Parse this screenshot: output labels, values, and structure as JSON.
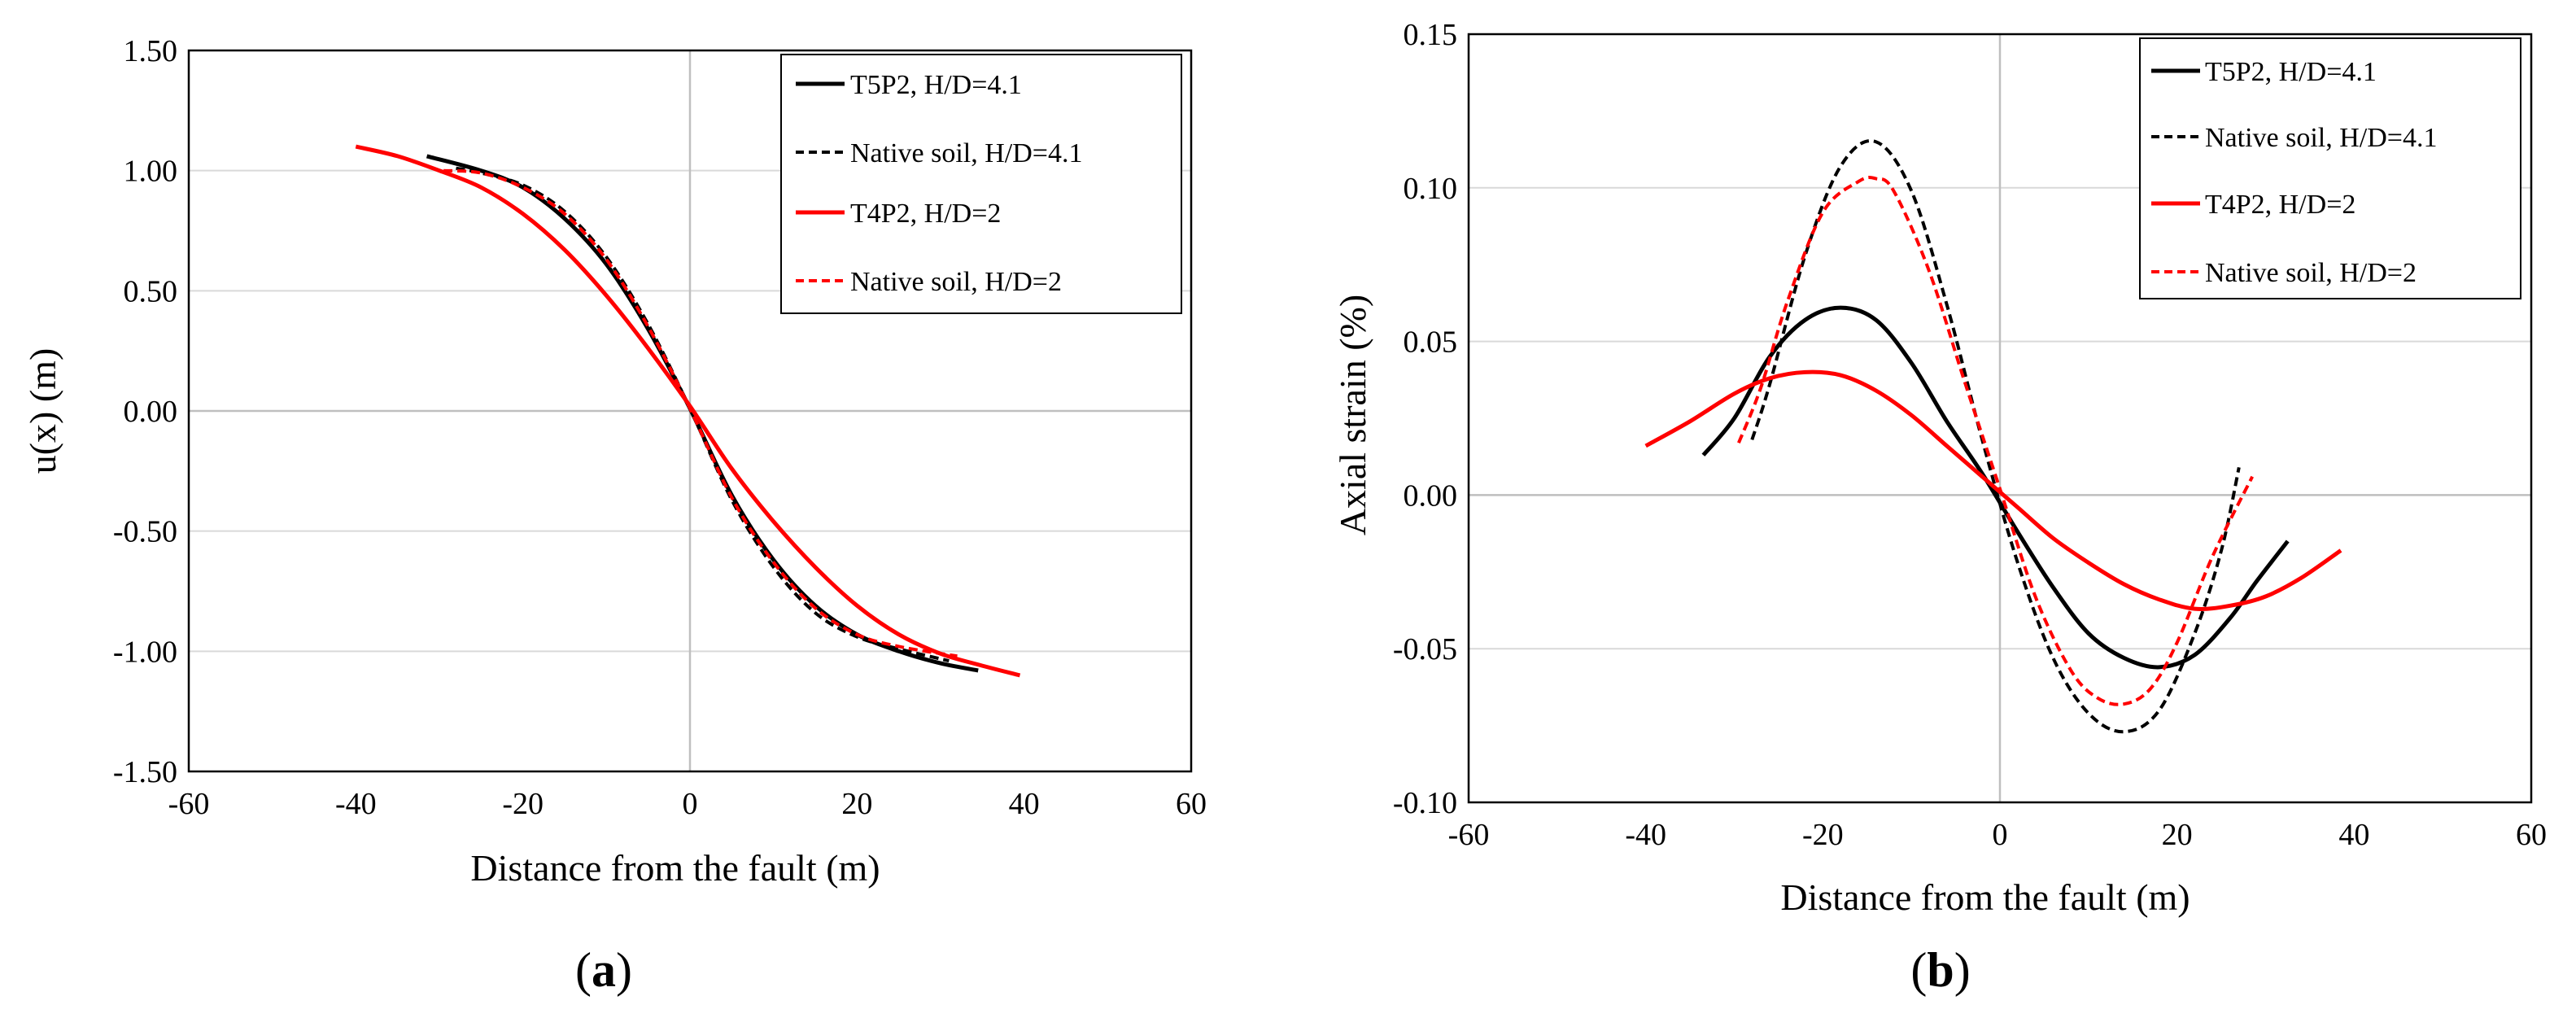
{
  "chart_data": [
    {
      "type": "line",
      "panel_label": "(a)",
      "panel_letter": "a",
      "xlabel": "Distance from the fault (m)",
      "ylabel": "u(x) (m)",
      "xlim": [
        -60,
        60
      ],
      "ylim": [
        -1.5,
        1.5
      ],
      "x_ticks": [
        -60,
        -40,
        -20,
        0,
        20,
        40,
        60
      ],
      "y_ticks": [
        1.5,
        1.0,
        0.5,
        0.0,
        -0.5,
        -1.0,
        -1.5
      ],
      "x_tick_labels": [
        "-60",
        "-40",
        "-20",
        "0",
        "20",
        "40",
        "60"
      ],
      "y_tick_labels": [
        "1.50",
        "1.00",
        "0.50",
        "0.00",
        "-0.50",
        "-1.00",
        "-1.50"
      ],
      "grid": "horizontal",
      "legend_position": "top-right",
      "series": [
        {
          "name": "T5P2, H/D=4.1",
          "color": "#000000",
          "style": "solid",
          "x": [
            -31.5,
            -25,
            -20,
            -15,
            -10,
            -5,
            0,
            5,
            10,
            15,
            20,
            25,
            30,
            34.5
          ],
          "y": [
            1.06,
            1.0,
            0.93,
            0.8,
            0.61,
            0.34,
            0.01,
            -0.35,
            -0.62,
            -0.81,
            -0.93,
            -1.0,
            -1.05,
            -1.08
          ]
        },
        {
          "name": "Native soil, H/D=4.1",
          "color": "#000000",
          "style": "dashed",
          "x": [
            -28,
            -25,
            -20,
            -15,
            -10,
            -5,
            0,
            5,
            10,
            15,
            20,
            25,
            31
          ],
          "y": [
            1.01,
            0.99,
            0.94,
            0.83,
            0.64,
            0.36,
            0.01,
            -0.37,
            -0.65,
            -0.84,
            -0.94,
            -0.99,
            -1.04
          ]
        },
        {
          "name": "T4P2, H/D=2",
          "color": "#ff0000",
          "style": "solid",
          "x": [
            -40,
            -35,
            -30,
            -25,
            -20,
            -15,
            -10,
            -5,
            0,
            5,
            10,
            15,
            20,
            25,
            30,
            35,
            39.5
          ],
          "y": [
            1.1,
            1.06,
            1.0,
            0.93,
            0.82,
            0.67,
            0.48,
            0.26,
            0.02,
            -0.24,
            -0.46,
            -0.65,
            -0.81,
            -0.93,
            -1.01,
            -1.06,
            -1.1
          ]
        },
        {
          "name": "Native soil, H/D=2",
          "color": "#ff0000",
          "style": "dashed",
          "x": [
            -29.5,
            -25,
            -20,
            -15,
            -10,
            -5,
            0,
            5,
            10,
            15,
            20,
            25,
            32
          ],
          "y": [
            1.0,
            0.99,
            0.93,
            0.82,
            0.63,
            0.35,
            0.01,
            -0.36,
            -0.63,
            -0.82,
            -0.93,
            -0.98,
            -1.02
          ]
        }
      ]
    },
    {
      "type": "line",
      "panel_label": "(b)",
      "panel_letter": "b",
      "xlabel": "Distance from the fault (m)",
      "ylabel": "Axial strain (%)",
      "xlim": [
        -60,
        60
      ],
      "ylim": [
        -0.1,
        0.15
      ],
      "x_ticks": [
        -60,
        -40,
        -20,
        0,
        20,
        40,
        60
      ],
      "y_ticks": [
        0.15,
        0.1,
        0.05,
        0.0,
        -0.05,
        -0.1
      ],
      "x_tick_labels": [
        "-60",
        "-40",
        "-20",
        "0",
        "20",
        "40",
        "60"
      ],
      "y_tick_labels": [
        "0.15",
        "0.10",
        "0.05",
        "0.00",
        "-0.05",
        "-0.10"
      ],
      "grid": "horizontal",
      "legend_position": "top-right",
      "series": [
        {
          "name": "T5P2, H/D=4.1",
          "color": "#000000",
          "style": "solid",
          "x": [
            -33.5,
            -30,
            -26,
            -22,
            -18,
            -14,
            -10,
            -6,
            -2,
            2,
            6,
            10,
            14,
            18,
            22,
            26,
            29,
            32.5
          ],
          "y": [
            0.013,
            0.025,
            0.045,
            0.057,
            0.061,
            0.057,
            0.043,
            0.024,
            0.007,
            -0.012,
            -0.03,
            -0.045,
            -0.053,
            -0.056,
            -0.052,
            -0.04,
            -0.028,
            -0.015
          ]
        },
        {
          "name": "Native soil, H/D=4.1",
          "color": "#000000",
          "style": "dashed",
          "x": [
            -28,
            -26,
            -22,
            -18,
            -14,
            -10,
            -6,
            -2,
            2,
            6,
            10,
            14,
            18,
            22,
            25,
            27
          ],
          "y": [
            0.018,
            0.036,
            0.078,
            0.107,
            0.115,
            0.099,
            0.062,
            0.018,
            -0.022,
            -0.053,
            -0.071,
            -0.077,
            -0.07,
            -0.045,
            -0.018,
            0.009
          ]
        },
        {
          "name": "T4P2, H/D=2",
          "color": "#ff0000",
          "style": "solid",
          "x": [
            -40,
            -35,
            -30,
            -26,
            -22,
            -18,
            -14,
            -10,
            -6,
            -2,
            2,
            6,
            10,
            14,
            18,
            22,
            26,
            30,
            34,
            38.5
          ],
          "y": [
            0.016,
            0.024,
            0.033,
            0.038,
            0.04,
            0.039,
            0.034,
            0.026,
            0.016,
            0.006,
            -0.004,
            -0.014,
            -0.022,
            -0.029,
            -0.034,
            -0.037,
            -0.036,
            -0.033,
            -0.027,
            -0.018
          ]
        },
        {
          "name": "Native soil, H/D=2",
          "color": "#ff0000",
          "style": "dashed",
          "x": [
            -29.5,
            -27,
            -24,
            -20,
            -16,
            -14,
            -12,
            -8,
            -4,
            0,
            4,
            8,
            11,
            14,
            17,
            20,
            24,
            28.5
          ],
          "y": [
            0.017,
            0.035,
            0.063,
            0.092,
            0.102,
            0.103,
            0.099,
            0.073,
            0.037,
            0.002,
            -0.033,
            -0.057,
            -0.066,
            -0.068,
            -0.063,
            -0.048,
            -0.02,
            0.006
          ]
        }
      ]
    }
  ]
}
